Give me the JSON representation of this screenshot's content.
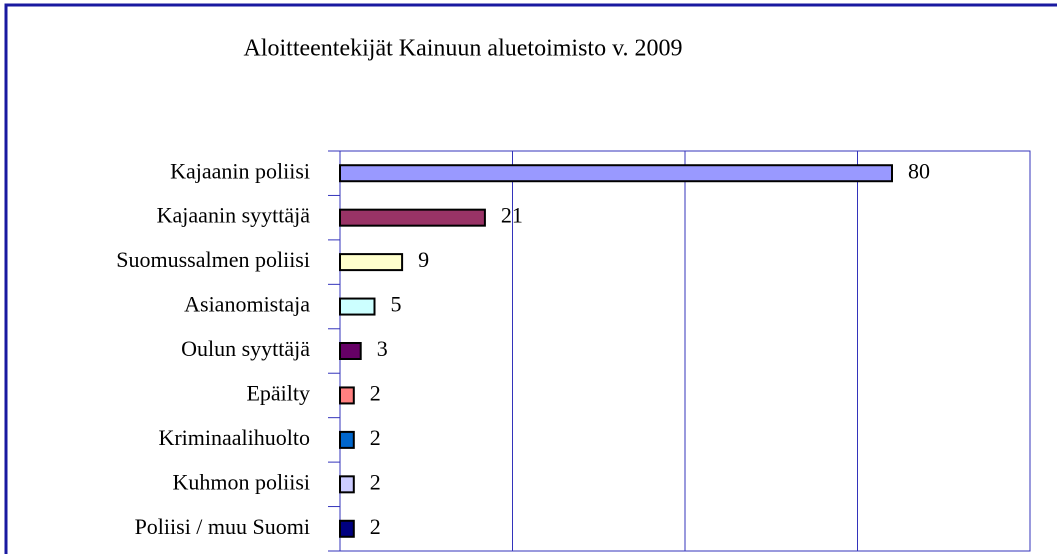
{
  "chart_data": {
    "type": "barh",
    "title": "Aloitteentekijät Kainuun aluetoimisto v. 2009",
    "categories": [
      "Kajaanin poliisi",
      "Kajaanin syyttäjä",
      "Suomussalmen poliisi",
      "Asianomistaja",
      "Oulun syyttäjä",
      "Epäilty",
      "Kriminaalihuolto",
      "Kuhmon poliisi",
      "Poliisi / muu Suomi"
    ],
    "values": [
      80,
      21,
      9,
      5,
      3,
      2,
      2,
      2,
      2
    ],
    "colors": [
      "#9999ff",
      "#993366",
      "#ffffcc",
      "#ccffff",
      "#660066",
      "#ff8080",
      "#0066cc",
      "#ccccff",
      "#000080"
    ],
    "xlim": [
      0,
      100
    ],
    "xticks": [
      0,
      25,
      50,
      75,
      100
    ],
    "grid": true
  }
}
